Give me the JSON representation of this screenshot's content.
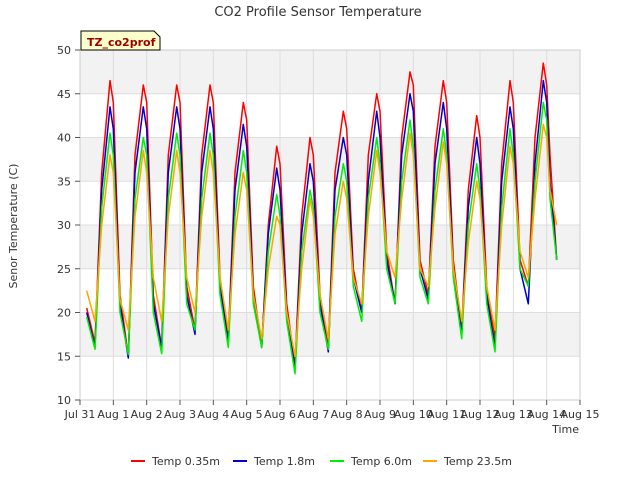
{
  "chart_data": {
    "type": "line",
    "title": "CO2 Profile Sensor Temperature",
    "xlabel": "Time",
    "ylabel": "Senor Temperature (C)",
    "annotation": "TZ_co2prof",
    "xlim": [
      0,
      15
    ],
    "ylim": [
      10,
      50
    ],
    "x_tick_labels": [
      "Jul 31",
      "Aug 1",
      "Aug 2",
      "Aug 3",
      "Aug 4",
      "Aug 5",
      "Aug 6",
      "Aug 7",
      "Aug 8",
      "Aug 9",
      "Aug 10",
      "Aug 11",
      "Aug 12",
      "Aug 13",
      "Aug 14",
      "Aug 15"
    ],
    "y_ticks": [
      10,
      15,
      20,
      25,
      30,
      35,
      40,
      45,
      50
    ],
    "grid": true,
    "banded_background": true,
    "legend_position": "bottom",
    "series": [
      {
        "name": "Temp 0.35m",
        "color": "#ff0000",
        "x": [
          0.2,
          0.45,
          0.65,
          0.9,
          1.0,
          1.2,
          1.45,
          1.65,
          1.9,
          2.0,
          2.2,
          2.45,
          2.65,
          2.9,
          3.0,
          3.2,
          3.45,
          3.65,
          3.9,
          4.0,
          4.2,
          4.45,
          4.65,
          4.9,
          5.0,
          5.2,
          5.45,
          5.65,
          5.9,
          6.0,
          6.2,
          6.45,
          6.65,
          6.9,
          7.0,
          7.2,
          7.45,
          7.65,
          7.9,
          8.0,
          8.2,
          8.45,
          8.65,
          8.9,
          9.0,
          9.2,
          9.45,
          9.65,
          9.9,
          10.0,
          10.2,
          10.45,
          10.65,
          10.9,
          11.0,
          11.2,
          11.45,
          11.65,
          11.9,
          12.0,
          12.2,
          12.45,
          12.65,
          12.9,
          13.0,
          13.2,
          13.45,
          13.65,
          13.9,
          14.0,
          14.1,
          14.3
        ],
        "y": [
          20.5,
          16.5,
          36,
          46.5,
          44,
          22,
          15,
          38,
          46,
          44,
          22,
          16,
          38,
          46,
          44,
          23,
          18,
          38,
          46,
          44,
          24,
          17,
          36,
          44,
          42,
          23,
          16,
          30,
          39,
          37,
          21,
          14,
          31,
          40,
          38,
          22,
          16,
          36,
          43,
          41,
          25,
          20,
          38,
          45,
          43,
          27,
          21,
          40,
          47.5,
          46,
          26,
          22,
          39,
          46.5,
          44,
          26,
          18,
          34,
          42.5,
          40,
          23,
          17,
          37,
          46.5,
          44,
          26,
          23,
          40,
          48.5,
          46,
          38,
          26
        ]
      },
      {
        "name": "Temp 1.8m",
        "color": "#0000cc",
        "x": [
          0.2,
          0.45,
          0.65,
          0.9,
          1.0,
          1.2,
          1.45,
          1.65,
          1.9,
          2.0,
          2.2,
          2.45,
          2.65,
          2.9,
          3.0,
          3.2,
          3.45,
          3.65,
          3.9,
          4.0,
          4.2,
          4.45,
          4.65,
          4.9,
          5.0,
          5.2,
          5.45,
          5.65,
          5.9,
          6.0,
          6.2,
          6.45,
          6.65,
          6.9,
          7.0,
          7.2,
          7.45,
          7.65,
          7.9,
          8.0,
          8.2,
          8.45,
          8.65,
          8.9,
          9.0,
          9.2,
          9.45,
          9.65,
          9.9,
          10.0,
          10.2,
          10.45,
          10.65,
          10.9,
          11.0,
          11.2,
          11.45,
          11.65,
          11.9,
          12.0,
          12.2,
          12.45,
          12.65,
          12.9,
          13.0,
          13.2,
          13.45,
          13.65,
          13.9,
          14.0,
          14.1,
          14.3
        ],
        "y": [
          20,
          16,
          34,
          43.5,
          41,
          21,
          14.8,
          36,
          43.5,
          41,
          21,
          16,
          36,
          43.5,
          41,
          22,
          17.5,
          36,
          43.5,
          41,
          23,
          16.5,
          34,
          41.5,
          39,
          22,
          16,
          29,
          36.5,
          34,
          20,
          13.5,
          29,
          37,
          35,
          21,
          15.5,
          34,
          40,
          38,
          24,
          20,
          35,
          43,
          40,
          26,
          21,
          38,
          45,
          43,
          25,
          21.5,
          37,
          44,
          41,
          25,
          17.5,
          32,
          40,
          37,
          22,
          16,
          35,
          43.5,
          41,
          25,
          21,
          37,
          46.5,
          44,
          35,
          26
        ]
      },
      {
        "name": "Temp 6.0m",
        "color": "#00ee00",
        "x": [
          0.2,
          0.45,
          0.65,
          0.9,
          1.0,
          1.2,
          1.45,
          1.65,
          1.9,
          2.0,
          2.2,
          2.45,
          2.65,
          2.9,
          3.0,
          3.2,
          3.45,
          3.65,
          3.9,
          4.0,
          4.2,
          4.45,
          4.65,
          4.9,
          5.0,
          5.2,
          5.45,
          5.65,
          5.9,
          6.0,
          6.2,
          6.45,
          6.65,
          6.9,
          7.0,
          7.2,
          7.45,
          7.65,
          7.9,
          8.0,
          8.2,
          8.45,
          8.65,
          8.9,
          9.0,
          9.2,
          9.45,
          9.65,
          9.9,
          10.0,
          10.2,
          10.45,
          10.65,
          10.9,
          11.0,
          11.2,
          11.45,
          11.65,
          11.9,
          12.0,
          12.2,
          12.45,
          12.65,
          12.9,
          13.0,
          13.2,
          13.45,
          13.65,
          13.9,
          14.0,
          14.1,
          14.3
        ],
        "y": [
          19.5,
          15.8,
          32,
          40.5,
          38,
          20,
          15.2,
          33,
          40,
          38,
          20,
          15.3,
          33,
          40.5,
          38,
          21,
          18,
          33,
          40.5,
          38,
          22,
          16,
          31,
          38.5,
          36,
          21,
          16,
          27,
          33.5,
          31,
          19,
          13,
          27,
          34,
          32,
          20,
          15.8,
          31,
          37,
          35,
          23,
          19,
          33,
          40,
          37,
          25,
          21,
          35,
          42,
          39,
          24,
          21,
          34,
          41,
          38,
          24,
          17,
          30,
          37,
          34,
          21,
          15.5,
          32,
          41,
          38,
          25,
          23,
          35,
          44,
          42,
          33,
          26
        ]
      },
      {
        "name": "Temp 23.5m",
        "color": "#ffa500",
        "x": [
          0.2,
          0.45,
          0.65,
          0.9,
          1.0,
          1.2,
          1.45,
          1.65,
          1.9,
          2.0,
          2.2,
          2.45,
          2.65,
          2.9,
          3.0,
          3.2,
          3.45,
          3.65,
          3.9,
          4.0,
          4.2,
          4.45,
          4.65,
          4.9,
          5.0,
          5.2,
          5.45,
          5.65,
          5.9,
          6.0,
          6.2,
          6.45,
          6.65,
          6.9,
          7.0,
          7.2,
          7.45,
          7.65,
          7.9,
          8.0,
          8.2,
          8.45,
          8.65,
          8.9,
          9.0,
          9.2,
          9.45,
          9.65,
          9.9,
          10.0,
          10.2,
          10.45,
          10.65,
          10.9,
          11.0,
          11.2,
          11.45,
          11.65,
          11.9,
          12.0,
          12.2,
          12.45,
          12.65,
          12.9,
          13.0,
          13.2,
          13.45,
          13.65,
          13.9,
          14.0,
          14.1,
          14.3
        ],
        "y": [
          22.5,
          19,
          30,
          38,
          36,
          21.5,
          18,
          31,
          38.5,
          36,
          24,
          19,
          31,
          38.5,
          36,
          24,
          20,
          31,
          38.5,
          36,
          24,
          18,
          29,
          36,
          34,
          22,
          17,
          25,
          31,
          30,
          20,
          15,
          25,
          33,
          31,
          22,
          17,
          29,
          35,
          33,
          24,
          21,
          31,
          38.5,
          36,
          27,
          24,
          33,
          40.5,
          38,
          25,
          23,
          32,
          39.5,
          37,
          25,
          19,
          28,
          35,
          33,
          23,
          18,
          30,
          39,
          37,
          27,
          24,
          33,
          41.5,
          40,
          34,
          30
        ]
      }
    ]
  }
}
